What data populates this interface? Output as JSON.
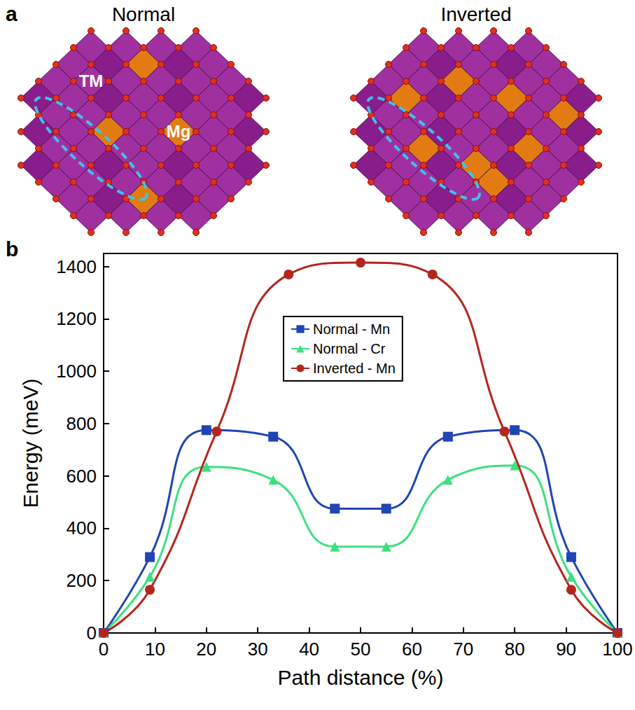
{
  "panel_a": {
    "label": "a",
    "structures": [
      "Normal",
      "Inverted"
    ],
    "site_labels": {
      "transition_metal": "TM",
      "magnesium": "Mg"
    }
  },
  "chart_data": {
    "type": "line",
    "panel_label": "b",
    "x_label": "Path distance (%)",
    "y_label": "Energy (meV)",
    "xlim": [
      0,
      100
    ],
    "xticks": [
      0,
      10,
      20,
      30,
      40,
      50,
      60,
      70,
      80,
      90,
      100
    ],
    "ylim": [
      0,
      1450
    ],
    "yticks": [
      0,
      200,
      400,
      600,
      800,
      1000,
      1200,
      1400
    ],
    "grid": false,
    "legend": "upper center",
    "series": [
      {
        "name": "Normal - Mn",
        "color": "#1f45b5",
        "marker": "square",
        "x": [
          0,
          9,
          20,
          33,
          45,
          55,
          67,
          80,
          91,
          100
        ],
        "values": [
          0,
          290,
          775,
          750,
          475,
          475,
          750,
          775,
          290,
          0
        ]
      },
      {
        "name": "Normal - Cr",
        "color": "#3de07f",
        "marker": "triangle",
        "x": [
          0,
          9,
          20,
          33,
          45,
          55,
          67,
          80,
          91,
          100
        ],
        "values": [
          0,
          215,
          635,
          585,
          330,
          330,
          585,
          640,
          215,
          0
        ]
      },
      {
        "name": "Inverted - Mn",
        "color": "#b3261e",
        "marker": "circle",
        "x": [
          0,
          9,
          22,
          36,
          50,
          64,
          78,
          91,
          100
        ],
        "values": [
          0,
          165,
          770,
          1370,
          1415,
          1370,
          770,
          165,
          0
        ]
      }
    ]
  }
}
